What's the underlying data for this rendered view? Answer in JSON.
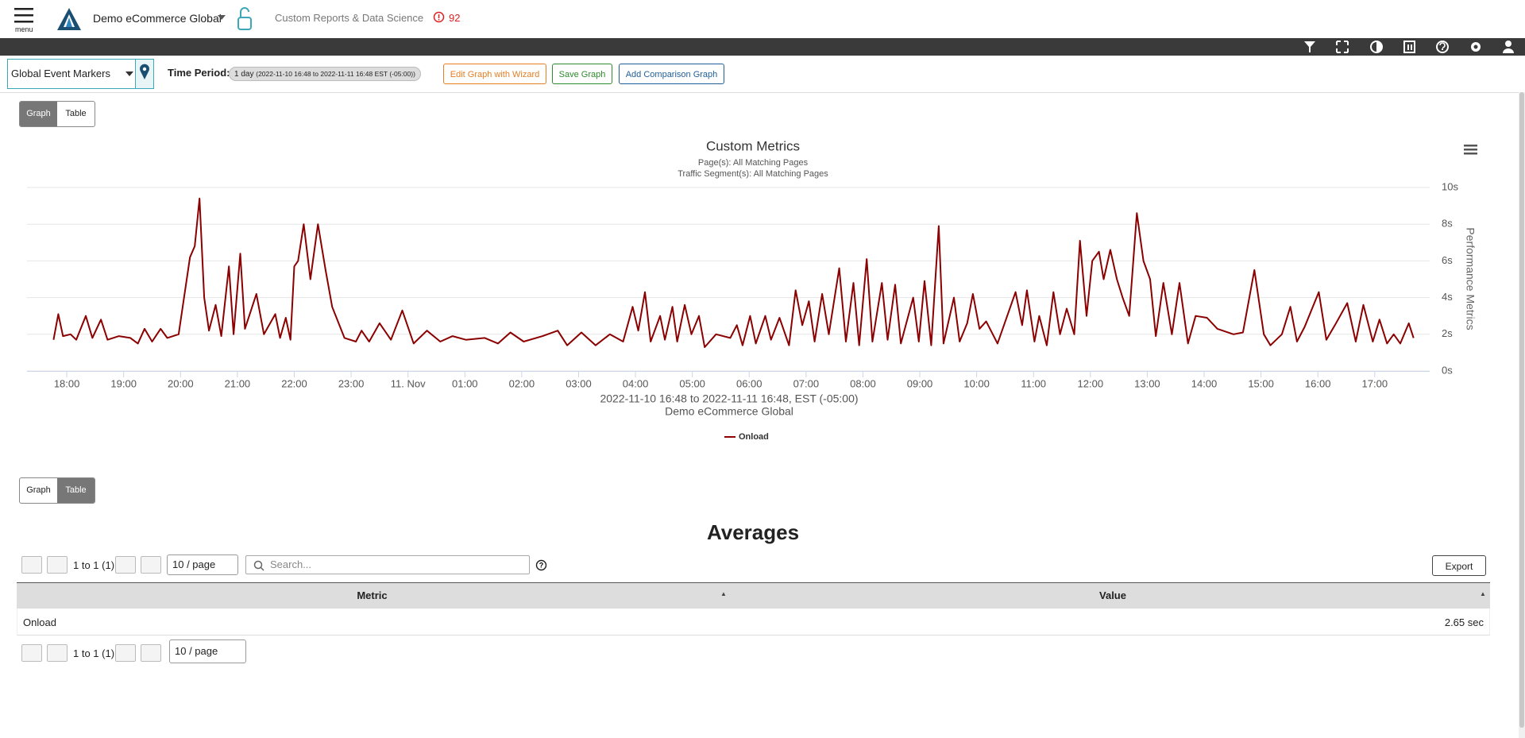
{
  "header": {
    "menu_label": "menu",
    "site": "Demo eCommerce Global",
    "section": "Custom Reports & Data Science",
    "alert_count": "92"
  },
  "toolbar": {
    "event_markers": "Global Event Markers",
    "time_period_label": "Time Period:",
    "time_period_value": "1 day",
    "time_period_range": "(2022-11-10 16:48 to 2022-11-11 16:48 EST (-05:00))",
    "buttons": [
      "Edit Graph with Wizard",
      "Save Graph",
      "Add Comparison Graph"
    ]
  },
  "view_toggle": [
    "Graph",
    "Table"
  ],
  "chart_data": {
    "type": "line",
    "title": "Custom Metrics",
    "subtitle": [
      "Page(s): All Matching Pages",
      "Traffic Segment(s): All Matching Pages"
    ],
    "x_caption": [
      "2022-11-10 16:48 to 2022-11-11 16:48, EST (-05:00)",
      "Demo eCommerce Global"
    ],
    "y_label": "Performance Metrics",
    "x": [
      "2022-11-10 17:46",
      "2022-11-10 17:51",
      "2022-11-10 17:56",
      "2022-11-10 18:04",
      "2022-11-10 18:10",
      "2022-11-10 18:20",
      "2022-11-10 18:27",
      "2022-11-10 18:36",
      "2022-11-10 18:43",
      "2022-11-10 18:55",
      "2022-11-10 19:07",
      "2022-11-10 19:15",
      "2022-11-10 19:22",
      "2022-11-10 19:30",
      "2022-11-10 19:39",
      "2022-11-10 19:46",
      "2022-11-10 19:58",
      "2022-11-10 20:10",
      "2022-11-10 20:15",
      "2022-11-10 20:20",
      "2022-11-10 20:25",
      "2022-11-10 20:30",
      "2022-11-10 20:37",
      "2022-11-10 20:43",
      "2022-11-10 20:51",
      "2022-11-10 20:56",
      "2022-11-10 21:03",
      "2022-11-10 21:08",
      "2022-11-10 21:20",
      "2022-11-10 21:28",
      "2022-11-10 21:40",
      "2022-11-10 21:45",
      "2022-11-10 21:51",
      "2022-11-10 21:56",
      "2022-11-10 22:00",
      "2022-11-10 22:04",
      "2022-11-10 22:10",
      "2022-11-10 22:17",
      "2022-11-10 22:25",
      "2022-11-10 22:33",
      "2022-11-10 22:40",
      "2022-11-10 22:53",
      "2022-11-10 23:05",
      "2022-11-10 23:11",
      "2022-11-10 23:19",
      "2022-11-10 23:30",
      "2022-11-10 23:42",
      "2022-11-10 23:54",
      "2022-11-11 00:06",
      "2022-11-11 00:20",
      "2022-11-11 00:34",
      "2022-11-11 00:47",
      "2022-11-11 01:01",
      "2022-11-11 01:21",
      "2022-11-11 01:35",
      "2022-11-11 01:48",
      "2022-11-11 02:02",
      "2022-11-11 02:22",
      "2022-11-11 02:38",
      "2022-11-11 02:48",
      "2022-11-11 03:03",
      "2022-11-11 03:18",
      "2022-11-11 03:33",
      "2022-11-11 03:47",
      "2022-11-11 03:57",
      "2022-11-11 04:03",
      "2022-11-11 04:10",
      "2022-11-11 04:16",
      "2022-11-11 04:26",
      "2022-11-11 04:31",
      "2022-11-11 04:39",
      "2022-11-11 04:44",
      "2022-11-11 04:52",
      "2022-11-11 04:59",
      "2022-11-11 05:07",
      "2022-11-11 05:13",
      "2022-11-11 05:25",
      "2022-11-11 05:40",
      "2022-11-11 05:47",
      "2022-11-11 05:53",
      "2022-11-11 06:01",
      "2022-11-11 06:07",
      "2022-11-11 06:17",
      "2022-11-11 06:23",
      "2022-11-11 06:32",
      "2022-11-11 06:42",
      "2022-11-11 06:49",
      "2022-11-11 06:56",
      "2022-11-11 07:03",
      "2022-11-11 07:09",
      "2022-11-11 07:17",
      "2022-11-11 07:24",
      "2022-11-11 07:35",
      "2022-11-11 07:42",
      "2022-11-11 07:50",
      "2022-11-11 07:56",
      "2022-11-11 08:04",
      "2022-11-11 08:10",
      "2022-11-11 08:20",
      "2022-11-11 08:26",
      "2022-11-11 08:34",
      "2022-11-11 08:40",
      "2022-11-11 08:53",
      "2022-11-11 08:59",
      "2022-11-11 09:05",
      "2022-11-11 09:12",
      "2022-11-11 09:20",
      "2022-11-11 09:25",
      "2022-11-11 09:36",
      "2022-11-11 09:42",
      "2022-11-11 09:50",
      "2022-11-11 09:56",
      "2022-11-11 10:03",
      "2022-11-11 10:10",
      "2022-11-11 10:22",
      "2022-11-11 10:41",
      "2022-11-11 10:48",
      "2022-11-11 10:53",
      "2022-11-11 11:01",
      "2022-11-11 11:06",
      "2022-11-11 11:14",
      "2022-11-11 11:21",
      "2022-11-11 11:28",
      "2022-11-11 11:35",
      "2022-11-11 11:43",
      "2022-11-11 11:49",
      "2022-11-11 11:56",
      "2022-11-11 12:02",
      "2022-11-11 12:09",
      "2022-11-11 12:14",
      "2022-11-11 12:21",
      "2022-11-11 12:28",
      "2022-11-11 12:34",
      "2022-11-11 12:41",
      "2022-11-11 12:49",
      "2022-11-11 12:56",
      "2022-11-11 13:03",
      "2022-11-11 13:09",
      "2022-11-11 13:17",
      "2022-11-11 13:26",
      "2022-11-11 13:34",
      "2022-11-11 13:43",
      "2022-11-11 13:51",
      "2022-11-11 14:03",
      "2022-11-11 14:14",
      "2022-11-11 14:31",
      "2022-11-11 14:41",
      "2022-11-11 14:53",
      "2022-11-11 15:03",
      "2022-11-11 15:10",
      "2022-11-11 15:22",
      "2022-11-11 15:31",
      "2022-11-11 15:38",
      "2022-11-11 15:46",
      "2022-11-11 16:01",
      "2022-11-11 16:09",
      "2022-11-11 16:18",
      "2022-11-11 16:31",
      "2022-11-11 16:40",
      "2022-11-11 16:48",
      "2022-11-11 16:58",
      "2022-11-11 17:05",
      "2022-11-11 17:13",
      "2022-11-11 17:20",
      "2022-11-11 17:27",
      "2022-11-11 17:36",
      "2022-11-11 17:41"
    ],
    "series": [
      {
        "name": "Onload",
        "color": "#8b0000",
        "values": [
          1.7,
          3.1,
          1.9,
          2.0,
          1.7,
          3.0,
          1.8,
          2.8,
          1.7,
          1.9,
          1.8,
          1.5,
          2.3,
          1.6,
          2.3,
          1.8,
          2.0,
          6.2,
          6.8,
          9.4,
          4.0,
          2.2,
          3.6,
          1.9,
          5.7,
          2.0,
          6.4,
          2.3,
          4.2,
          2.0,
          3.1,
          1.8,
          2.9,
          1.7,
          5.7,
          6.0,
          8.0,
          5.0,
          8.0,
          5.5,
          3.5,
          1.8,
          1.6,
          2.2,
          1.6,
          2.6,
          1.7,
          3.3,
          1.5,
          2.2,
          1.6,
          1.9,
          1.7,
          1.8,
          1.5,
          2.1,
          1.6,
          1.9,
          2.2,
          1.4,
          2.1,
          1.4,
          2.0,
          1.6,
          3.5,
          2.2,
          4.3,
          1.6,
          3.0,
          1.7,
          3.5,
          1.6,
          3.6,
          2.0,
          3.0,
          1.3,
          2.0,
          1.8,
          2.5,
          1.4,
          3.0,
          1.5,
          3.0,
          1.7,
          2.9,
          1.4,
          4.4,
          2.5,
          3.8,
          1.6,
          4.2,
          2.0,
          5.6,
          1.6,
          4.8,
          1.4,
          6.1,
          1.6,
          4.8,
          1.7,
          4.7,
          1.5,
          4.0,
          1.6,
          4.9,
          1.4,
          7.9,
          1.5,
          4.0,
          1.6,
          2.6,
          4.2,
          2.3,
          2.7,
          1.5,
          4.3,
          2.5,
          4.4,
          1.6,
          3.0,
          1.4,
          4.3,
          2.0,
          3.4,
          2.0,
          7.1,
          3.0,
          6.0,
          6.5,
          5.0,
          6.6,
          5.0,
          4.0,
          3.0,
          8.6,
          6.0,
          5.0,
          1.9,
          4.8,
          2.0,
          4.8,
          1.5,
          3.0,
          2.9,
          2.3,
          2.0,
          2.1,
          5.5,
          2.0,
          1.4,
          2.0,
          3.5,
          1.6,
          2.4,
          4.3,
          1.7,
          2.5,
          3.7,
          1.6,
          3.6,
          1.6,
          2.8,
          1.5,
          2.0,
          1.5,
          2.6,
          1.8
        ]
      }
    ],
    "xlim": [
      "2022-11-10 17:18",
      "2022-11-11 17:58"
    ],
    "xticks": [
      {
        "value": "2022-11-10 18:00",
        "label": "18:00"
      },
      {
        "value": "2022-11-10 19:00",
        "label": "19:00"
      },
      {
        "value": "2022-11-10 20:00",
        "label": "20:00"
      },
      {
        "value": "2022-11-10 21:00",
        "label": "21:00"
      },
      {
        "value": "2022-11-10 22:00",
        "label": "22:00"
      },
      {
        "value": "2022-11-10 23:00",
        "label": "23:00"
      },
      {
        "value": "2022-11-11 00:00",
        "label": "11. Nov"
      },
      {
        "value": "2022-11-11 01:00",
        "label": "01:00"
      },
      {
        "value": "2022-11-11 02:00",
        "label": "02:00"
      },
      {
        "value": "2022-11-11 03:00",
        "label": "03:00"
      },
      {
        "value": "2022-11-11 04:00",
        "label": "04:00"
      },
      {
        "value": "2022-11-11 05:00",
        "label": "05:00"
      },
      {
        "value": "2022-11-11 06:00",
        "label": "06:00"
      },
      {
        "value": "2022-11-11 07:00",
        "label": "07:00"
      },
      {
        "value": "2022-11-11 08:00",
        "label": "08:00"
      },
      {
        "value": "2022-11-11 09:00",
        "label": "09:00"
      },
      {
        "value": "2022-11-11 10:00",
        "label": "10:00"
      },
      {
        "value": "2022-11-11 11:00",
        "label": "11:00"
      },
      {
        "value": "2022-11-11 12:00",
        "label": "12:00"
      },
      {
        "value": "2022-11-11 13:00",
        "label": "13:00"
      },
      {
        "value": "2022-11-11 14:00",
        "label": "14:00"
      },
      {
        "value": "2022-11-11 15:00",
        "label": "15:00"
      },
      {
        "value": "2022-11-11 16:00",
        "label": "16:00"
      },
      {
        "value": "2022-11-11 17:00",
        "label": "17:00"
      }
    ],
    "ylim": [
      0,
      10
    ],
    "yticks": [
      {
        "value": 0,
        "label": "0s"
      },
      {
        "value": 2,
        "label": "2s"
      },
      {
        "value": 4,
        "label": "4s"
      },
      {
        "value": 6,
        "label": "6s"
      },
      {
        "value": 8,
        "label": "8s"
      },
      {
        "value": 10,
        "label": "10s"
      }
    ],
    "grid": true,
    "legend": "bottom"
  },
  "table": {
    "title": "Averages",
    "pager_range": "1 to 1 (1)",
    "page_size": "10 / page",
    "search_placeholder": "Search...",
    "export": "Export",
    "columns": [
      "Metric",
      "Value"
    ],
    "rows": [
      [
        "Onload",
        "2.65 sec"
      ]
    ]
  }
}
